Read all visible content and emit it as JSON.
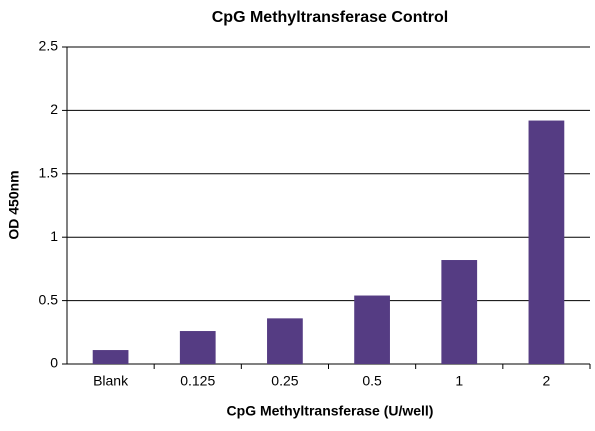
{
  "chart_data": {
    "type": "bar",
    "title": "CpG Methyltransferase Control",
    "x_label": "CpG Methyltransferase (U/well)",
    "y_label": "OD 450nm",
    "categories": [
      "Blank",
      "0.125",
      "0.25",
      "0.5",
      "1",
      "2"
    ],
    "values": [
      0.11,
      0.26,
      0.36,
      0.54,
      0.82,
      1.92
    ],
    "color": "#553c83",
    "ylim": [
      0,
      2.5
    ],
    "yticks": [
      0,
      0.5,
      1,
      1.5,
      2,
      2.5
    ],
    "grid": true
  }
}
